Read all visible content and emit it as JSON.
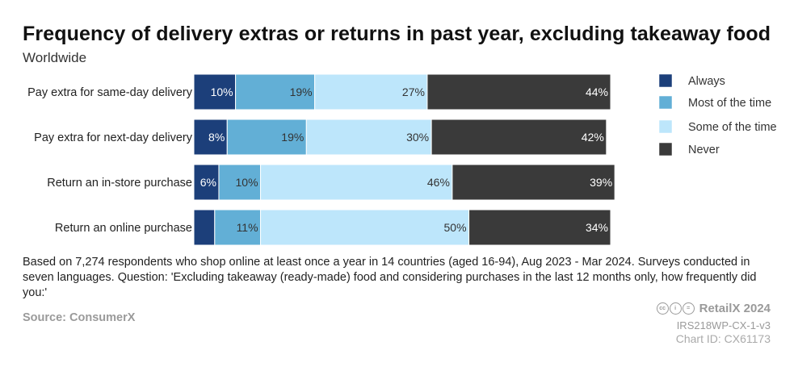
{
  "chart_data": {
    "type": "bar",
    "orientation": "horizontal",
    "stacked": true,
    "title": "Frequency of delivery extras or returns in past year, excluding takeaway food",
    "subtitle": "Worldwide",
    "categories": [
      "Pay extra for same-day delivery",
      "Pay extra for next-day delivery",
      "Return an in-store purchase",
      "Return an online purchase"
    ],
    "series": [
      {
        "name": "Always",
        "color": "#1c3f7a",
        "values": [
          10,
          8,
          6,
          5
        ],
        "labels": [
          "10%",
          "8%",
          "6%",
          ""
        ]
      },
      {
        "name": "Most of the time",
        "color": "#62afd6",
        "values": [
          19,
          19,
          10,
          11
        ],
        "labels": [
          "19%",
          "19%",
          "10%",
          "11%"
        ]
      },
      {
        "name": "Some of the time",
        "color": "#bde6fb",
        "values": [
          27,
          30,
          46,
          50
        ],
        "labels": [
          "27%",
          "30%",
          "46%",
          "50%"
        ]
      },
      {
        "name": "Never",
        "color": "#3a3a3a",
        "values": [
          44,
          42,
          39,
          34
        ],
        "labels": [
          "44%",
          "42%",
          "39%",
          "34%"
        ]
      }
    ],
    "xlim": [
      0,
      100
    ],
    "legend_position": "right",
    "grid": false
  },
  "footer": {
    "note": "Based on 7,274 respondents who shop online at least once a year in 14 countries (aged 16-94), Aug 2023 - Mar 2024. Surveys conducted in seven languages. Question: 'Excluding takeaway (ready-made) food and considering purchases in the last 12 months only, how frequently did you:'",
    "source": "Source: ConsumerX",
    "brand": "RetailX 2024",
    "code": "IRS218WP-CX-1-v3",
    "chart_id": "Chart ID: CX61173"
  }
}
